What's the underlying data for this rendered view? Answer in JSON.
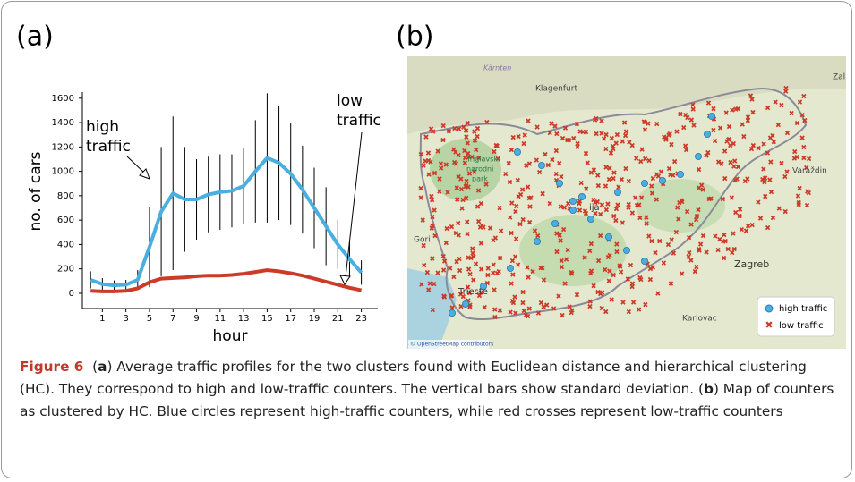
{
  "panel_labels": [
    "(a)",
    "(b)"
  ],
  "chart_data": {
    "type": "line",
    "xlabel": "hour",
    "ylabel": "no. of cars",
    "x": [
      0,
      1,
      2,
      3,
      4,
      5,
      6,
      7,
      8,
      9,
      10,
      11,
      12,
      13,
      14,
      15,
      16,
      17,
      18,
      19,
      20,
      21,
      22,
      23
    ],
    "xlim": [
      -0.7,
      24.4
    ],
    "xticks": [
      1,
      3,
      5,
      7,
      9,
      11,
      13,
      15,
      17,
      19,
      21,
      23
    ],
    "ylim": [
      -125,
      1650
    ],
    "yticks": [
      0,
      200,
      400,
      600,
      800,
      1000,
      1200,
      1400,
      1600
    ],
    "series": [
      {
        "name": "high traffic",
        "color": "#4aaee0",
        "values": [
          110,
          75,
          65,
          70,
          110,
          380,
          670,
          820,
          770,
          770,
          810,
          830,
          840,
          880,
          1000,
          1110,
          1070,
          980,
          850,
          700,
          550,
          400,
          280,
          170
        ],
        "errors": [
          70,
          50,
          40,
          40,
          80,
          330,
          530,
          630,
          430,
          330,
          310,
          310,
          300,
          310,
          420,
          530,
          470,
          420,
          360,
          330,
          320,
          200,
          150,
          100
        ]
      },
      {
        "name": "low traffic",
        "color": "#cc3a28",
        "values": [
          20,
          15,
          15,
          20,
          40,
          90,
          120,
          125,
          130,
          140,
          145,
          145,
          150,
          160,
          175,
          190,
          180,
          165,
          145,
          120,
          95,
          70,
          45,
          25
        ]
      }
    ],
    "annotations": [
      [
        "high",
        "traffic"
      ],
      [
        "low",
        "traffic"
      ]
    ]
  },
  "map": {
    "places": [
      "Kärnten",
      "Klagenfurt",
      "Triglavski",
      "narodni",
      "park",
      "Varaždin",
      "Zagreb",
      "Gori",
      "Trieste",
      "Karlovac",
      "ija",
      "Zal"
    ],
    "attribution": "© OpenStreetMap contributors",
    "legend": [
      "high traffic",
      "low traffic"
    ]
  },
  "caption": [
    {
      "text": "Figure 6",
      "bold": true
    },
    {
      "text": "  ("
    },
    {
      "text": "a",
      "bold": true
    },
    {
      "text": ") Average traffic profiles for the two clusters found with Euclidean distance and hierarchical clustering (HC). They correspond to high and low-traffic counters. The vertical bars show standard deviation. ("
    },
    {
      "text": "b",
      "bold": true
    },
    {
      "text": ") Map of counters as clustered by HC. Blue circles represent high-traffic counters, while red crosses represent low-traffic counters"
    }
  ]
}
